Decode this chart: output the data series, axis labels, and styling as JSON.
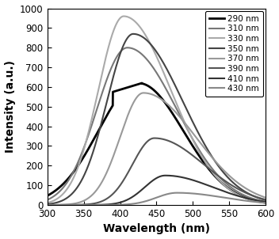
{
  "xlabel": "Wavelength (nm)",
  "ylabel": "Intensity (a.u.)",
  "xlim": [
    300,
    600
  ],
  "ylim": [
    0,
    1000
  ],
  "xticks": [
    300,
    350,
    400,
    450,
    500,
    550,
    600
  ],
  "yticks": [
    0,
    100,
    200,
    300,
    400,
    500,
    600,
    700,
    800,
    900,
    1000
  ],
  "series": [
    {
      "label": "290 nm",
      "color": "#000000",
      "linewidth": 2.0,
      "peak_x": 425,
      "peak_y": 620,
      "sig_l": 55,
      "sig_r": 62,
      "flat": true,
      "flat_lo": 390,
      "flat_hi": 430,
      "flat_y1": 575,
      "flat_y2": 620
    },
    {
      "label": "310 nm",
      "color": "#777777",
      "linewidth": 1.5,
      "peak_x": 410,
      "peak_y": 800,
      "sig_l": 42,
      "sig_r": 68,
      "flat": false
    },
    {
      "label": "330 nm",
      "color": "#aaaaaa",
      "linewidth": 1.5,
      "peak_x": 405,
      "peak_y": 960,
      "sig_l": 35,
      "sig_r": 65,
      "flat": false
    },
    {
      "label": "350 nm",
      "color": "#444444",
      "linewidth": 1.5,
      "peak_x": 418,
      "peak_y": 870,
      "sig_l": 36,
      "sig_r": 68,
      "flat": false
    },
    {
      "label": "370 nm",
      "color": "#999999",
      "linewidth": 1.5,
      "peak_x": 432,
      "peak_y": 570,
      "sig_l": 32,
      "sig_r": 72,
      "flat": false
    },
    {
      "label": "390 nm",
      "color": "#555555",
      "linewidth": 1.5,
      "peak_x": 447,
      "peak_y": 340,
      "sig_l": 30,
      "sig_r": 68,
      "flat": false
    },
    {
      "label": "410 nm",
      "color": "#333333",
      "linewidth": 1.5,
      "peak_x": 462,
      "peak_y": 150,
      "sig_l": 28,
      "sig_r": 65,
      "flat": false
    },
    {
      "label": "430 nm",
      "color": "#888888",
      "linewidth": 1.5,
      "peak_x": 478,
      "peak_y": 62,
      "sig_l": 28,
      "sig_r": 65,
      "flat": false
    }
  ],
  "legend_fontsize": 7.5,
  "axis_fontsize": 10,
  "tick_fontsize": 8.5
}
